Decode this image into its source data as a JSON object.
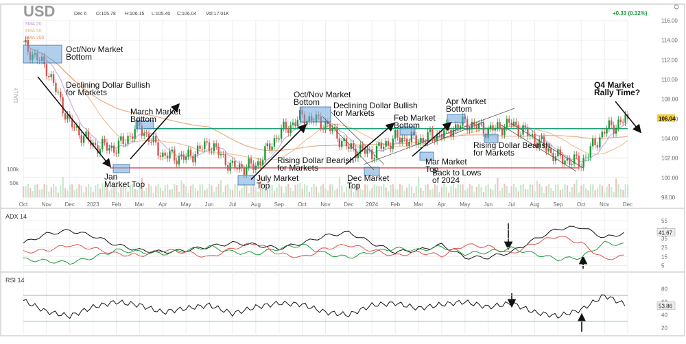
{
  "header": {
    "symbol": "USD",
    "date": "Dec 6",
    "open": "O:105.78",
    "high": "H:106.15",
    "low": "L:105.40",
    "close": "C:106.04",
    "volume": "Vol:17.01K",
    "change": "+0.33 (0.32%)"
  },
  "colors": {
    "up": "#1a9c3a",
    "down": "#d9534f",
    "sma20": "#c39bd3",
    "sma50": "#f0b27a",
    "sma200": "#e59866",
    "green_line": "#1e9e74",
    "red_line": "#e05252",
    "purple_band": "#d48fd4",
    "blue_band": "#7ec8e3",
    "highlight_box": "#6fa8dc"
  },
  "chart_data": [
    {
      "type": "line",
      "title": "USD",
      "subtitle": "DAILY",
      "legend": [
        "SMA 20",
        "SMA 50",
        "SMA 200"
      ],
      "x_ticks": [
        "Oct",
        "Nov",
        "Dec",
        "2023",
        "Feb",
        "Mar",
        "Apr",
        "May",
        "Jun",
        "Jul",
        "Aug",
        "Sep",
        "Oct",
        "Nov",
        "Dec",
        "2024",
        "Feb",
        "Mar",
        "Apr",
        "May",
        "Jun",
        "Jul",
        "Aug",
        "Sep",
        "Oct",
        "Nov",
        "Dec"
      ],
      "y_ticks": [
        98,
        100,
        102,
        104,
        106,
        108,
        110,
        112,
        114,
        116
      ],
      "ylim": [
        98,
        116
      ],
      "price_label": "106.04",
      "volume_ticks": [
        "100k",
        "50k"
      ],
      "x": [
        "Oct",
        "Nov",
        "Dec",
        "2023",
        "Feb",
        "Mar",
        "Apr",
        "May",
        "Jun",
        "Jul",
        "Aug",
        "Sep",
        "Oct",
        "Nov",
        "Dec",
        "2024",
        "Feb",
        "Mar",
        "Apr",
        "May",
        "Jun",
        "Jul",
        "Aug",
        "Sep",
        "Oct",
        "Nov",
        "Dec"
      ],
      "series": [
        {
          "name": "USD",
          "values": [
            113.5,
            111.2,
            105.5,
            103.3,
            103.0,
            105.2,
            102.3,
            102.0,
            103.5,
            101.0,
            101.2,
            104.5,
            106.2,
            105.5,
            103.0,
            102.5,
            104.0,
            103.8,
            104.5,
            105.6,
            104.8,
            105.5,
            104.0,
            102.0,
            101.5,
            104.8,
            106.04
          ]
        }
      ],
      "horizontal_levels": [
        105.0,
        101.0
      ],
      "annotations": [
        "Oct/Nov Market Bottom",
        "Declining Dollar Bullish for Markets",
        "March Market Bottom",
        "Jan  Market Top",
        "July Market Top",
        "Oct/Nov Market Bottom",
        "Declining Dollar Bullish for Markets",
        "Rising Dollar Bearish for Markets",
        "Feb Market Bottom",
        "Dec Market Top",
        "Apr Market Bottom",
        "Mar Market Top",
        "Rising Dollar Bearish for Markets",
        "Back to Lows of 2024",
        "Q4 Market Rally Time?"
      ]
    },
    {
      "type": "line",
      "title": "ADX 14",
      "y_ticks": [
        5,
        15,
        25,
        35,
        45,
        55
      ],
      "ylim": [
        0,
        58
      ],
      "value_label": "41.67",
      "x": [
        "Oct",
        "Nov",
        "Dec",
        "2023",
        "Feb",
        "Mar",
        "Apr",
        "May",
        "Jun",
        "Jul",
        "Aug",
        "Sep",
        "Oct",
        "Nov",
        "Dec",
        "2024",
        "Feb",
        "Mar",
        "Apr",
        "May",
        "Jun",
        "Jul",
        "Aug",
        "Sep",
        "Oct",
        "Nov",
        "Dec"
      ],
      "series": [
        {
          "name": "ADX",
          "values": [
            30,
            40,
            44,
            38,
            28,
            22,
            20,
            22,
            26,
            30,
            28,
            24,
            30,
            38,
            42,
            30,
            20,
            22,
            28,
            14,
            14,
            20,
            34,
            46,
            48,
            36,
            42
          ]
        },
        {
          "name": "+DI",
          "values": [
            12,
            10,
            8,
            14,
            22,
            20,
            18,
            22,
            26,
            20,
            18,
            24,
            28,
            18,
            14,
            20,
            24,
            22,
            26,
            18,
            20,
            24,
            18,
            12,
            14,
            30,
            28
          ]
        },
        {
          "name": "-DI",
          "values": [
            20,
            22,
            28,
            24,
            18,
            16,
            22,
            20,
            14,
            24,
            30,
            18,
            14,
            24,
            28,
            22,
            16,
            20,
            16,
            28,
            26,
            18,
            30,
            38,
            30,
            12,
            16
          ]
        }
      ]
    },
    {
      "type": "line",
      "title": "RSI 14",
      "y_ticks": [
        20,
        40,
        60,
        80
      ],
      "ylim": [
        10,
        90
      ],
      "value_label": "53.86",
      "overbought": 70,
      "oversold": 30,
      "x": [
        "Oct",
        "Nov",
        "Dec",
        "2023",
        "Feb",
        "Mar",
        "Apr",
        "May",
        "Jun",
        "Jul",
        "Aug",
        "Sep",
        "Oct",
        "Nov",
        "Dec",
        "2024",
        "Feb",
        "Mar",
        "Apr",
        "May",
        "Jun",
        "Jul",
        "Aug",
        "Sep",
        "Oct",
        "Nov",
        "Dec"
      ],
      "series": [
        {
          "name": "RSI",
          "values": [
            62,
            45,
            38,
            52,
            60,
            55,
            44,
            50,
            55,
            42,
            52,
            58,
            56,
            44,
            40,
            55,
            58,
            50,
            56,
            60,
            52,
            58,
            44,
            38,
            48,
            70,
            54
          ]
        }
      ]
    }
  ]
}
